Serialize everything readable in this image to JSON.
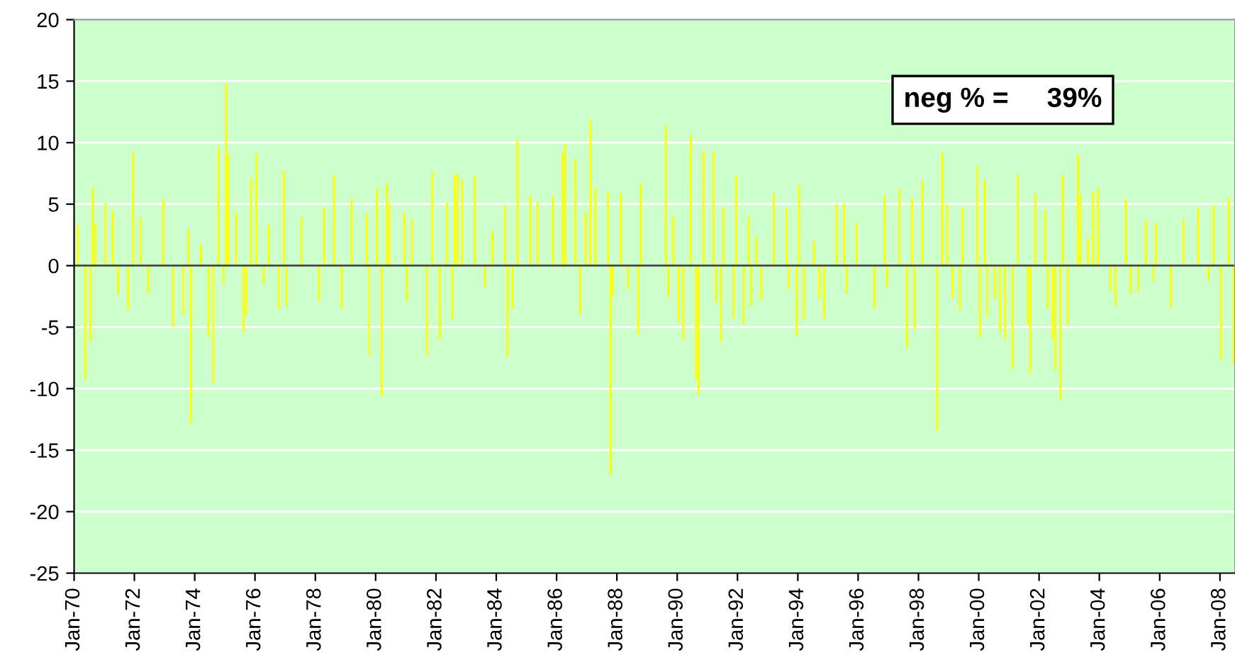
{
  "chart_data": {
    "type": "bar",
    "x": [
      "1970-02",
      "1970-05",
      "1970-07",
      "1970-08",
      "1970-09",
      "1971-01",
      "1971-04",
      "1971-06",
      "1971-10",
      "1971-12",
      "1972-03",
      "1972-06",
      "1972-12",
      "1973-04",
      "1973-08",
      "1973-10",
      "1973-11",
      "1974-03",
      "1974-06",
      "1974-08",
      "1974-10",
      "1974-12",
      "1975-01",
      "1975-02",
      "1975-05",
      "1975-08",
      "1975-09",
      "1975-11",
      "1976-01",
      "1976-04",
      "1976-06",
      "1976-10",
      "1976-12",
      "1977-01",
      "1977-07",
      "1978-02",
      "1978-04",
      "1978-08",
      "1978-11",
      "1979-03",
      "1979-09",
      "1979-10",
      "1980-01",
      "1980-03",
      "1980-05",
      "1980-06",
      "1980-12",
      "1981-01",
      "1981-03",
      "1981-09",
      "1981-11",
      "1982-02",
      "1982-05",
      "1982-07",
      "1982-08",
      "1982-09",
      "1982-11",
      "1983-04",
      "1983-08",
      "1983-11",
      "1984-04",
      "1984-05",
      "1984-07",
      "1984-09",
      "1985-02",
      "1985-05",
      "1985-11",
      "1986-03",
      "1986-04",
      "1986-08",
      "1986-10",
      "1986-12",
      "1987-02",
      "1987-04",
      "1987-09",
      "1987-10",
      "1987-11",
      "1988-02",
      "1988-05",
      "1988-09",
      "1988-10",
      "1989-08",
      "1989-09",
      "1989-11",
      "1990-01",
      "1990-03",
      "1990-06",
      "1990-08",
      "1990-09",
      "1990-11",
      "1991-03",
      "1991-04",
      "1991-06",
      "1991-07",
      "1991-11",
      "1991-12",
      "1992-03",
      "1992-05",
      "1992-06",
      "1992-08",
      "1992-10",
      "1993-03",
      "1993-08",
      "1993-09",
      "1993-12",
      "1994-01",
      "1994-03",
      "1994-07",
      "1994-09",
      "1994-11",
      "1995-04",
      "1995-07",
      "1995-08",
      "1995-12",
      "1996-07",
      "1996-11",
      "1996-12",
      "1997-05",
      "1997-08",
      "1997-10",
      "1997-11",
      "1998-02",
      "1998-08",
      "1998-10",
      "1998-12",
      "1999-02",
      "1999-05",
      "1999-06",
      "1999-12",
      "2000-01",
      "2000-03",
      "2000-04",
      "2000-07",
      "2000-09",
      "2000-11",
      "2001-02",
      "2001-04",
      "2001-08",
      "2001-09",
      "2001-11",
      "2002-03",
      "2002-04",
      "2002-06",
      "2002-07",
      "2002-09",
      "2002-10",
      "2002-12",
      "2003-04",
      "2003-05",
      "2003-08",
      "2003-10",
      "2003-12",
      "2004-05",
      "2004-07",
      "2004-11",
      "2005-01",
      "2005-04",
      "2005-07",
      "2005-10",
      "2005-11",
      "2006-05",
      "2006-10",
      "2007-04",
      "2007-08",
      "2007-10",
      "2008-01",
      "2008-04",
      "2008-06"
    ],
    "values": [
      3.3,
      -9.3,
      -6.2,
      6.4,
      3.5,
      5.1,
      4.5,
      -2.3,
      -3.6,
      9.2,
      3.9,
      -2.3,
      5.4,
      -5.0,
      -4.0,
      3.0,
      -12.8,
      1.7,
      -5.8,
      -9.5,
      9.7,
      -1.5,
      14.8,
      9.0,
      4.3,
      -5.4,
      -4.0,
      7.1,
      9.2,
      -1.5,
      3.3,
      -3.5,
      7.7,
      -3.3,
      3.9,
      -2.9,
      4.7,
      7.4,
      -3.5,
      5.5,
      4.2,
      -7.3,
      6.3,
      -10.6,
      6.7,
      5.1,
      4.3,
      -2.9,
      3.8,
      -7.3,
      7.6,
      -6.0,
      5.1,
      -4.4,
      7.4,
      7.4,
      7.0,
      7.3,
      -1.7,
      2.8,
      4.9,
      -7.4,
      -3.5,
      10.2,
      5.7,
      5.2,
      5.7,
      9.2,
      9.9,
      8.7,
      -4.0,
      4.3,
      11.9,
      6.3,
      6.0,
      -17.0,
      -2.5,
      5.9,
      -1.9,
      -5.6,
      6.7,
      11.4,
      -2.5,
      4.0,
      -4.6,
      -6.0,
      10.6,
      -9.3,
      -10.5,
      9.4,
      9.3,
      -3.0,
      -6.2,
      4.8,
      -4.3,
      7.3,
      -4.8,
      4.0,
      -3.3,
      2.4,
      -2.8,
      5.9,
      4.7,
      -1.9,
      -5.7,
      6.6,
      -4.3,
      2.0,
      -2.7,
      -4.3,
      5.0,
      5.0,
      -2.3,
      3.5,
      -3.5,
      5.7,
      -1.7,
      6.3,
      -6.7,
      5.5,
      -5.2,
      6.9,
      -13.4,
      9.2,
      5.0,
      -2.7,
      -3.6,
      4.8,
      8.1,
      -5.8,
      7.0,
      -4.2,
      -2.7,
      -5.4,
      -6.0,
      -8.4,
      7.4,
      -4.8,
      -8.8,
      5.9,
      4.5,
      -3.5,
      -6.0,
      -8.5,
      -10.9,
      7.4,
      -4.8,
      9.0,
      5.8,
      2.3,
      6.0,
      6.3,
      -2.1,
      -3.3,
      5.4,
      -2.3,
      -2.1,
      3.7,
      -1.3,
      3.5,
      -3.4,
      3.8,
      4.7,
      -1.2,
      4.9,
      -7.7,
      5.5,
      -7.9
    ],
    "color": "#ffff00",
    "xlim": [
      "1970-01",
      "2008-07"
    ],
    "xticks": [
      {
        "value": "1970-01",
        "label": "Jan-70"
      },
      {
        "value": "1972-01",
        "label": "Jan-72"
      },
      {
        "value": "1974-01",
        "label": "Jan-74"
      },
      {
        "value": "1976-01",
        "label": "Jan-76"
      },
      {
        "value": "1978-01",
        "label": "Jan-78"
      },
      {
        "value": "1980-01",
        "label": "Jan-80"
      },
      {
        "value": "1982-01",
        "label": "Jan-82"
      },
      {
        "value": "1984-01",
        "label": "Jan-84"
      },
      {
        "value": "1986-01",
        "label": "Jan-86"
      },
      {
        "value": "1988-01",
        "label": "Jan-88"
      },
      {
        "value": "1990-01",
        "label": "Jan-90"
      },
      {
        "value": "1992-01",
        "label": "Jan-92"
      },
      {
        "value": "1994-01",
        "label": "Jan-94"
      },
      {
        "value": "1996-01",
        "label": "Jan-96"
      },
      {
        "value": "1998-01",
        "label": "Jan-98"
      },
      {
        "value": "2000-01",
        "label": "Jan-00"
      },
      {
        "value": "2002-01",
        "label": "Jan-02"
      },
      {
        "value": "2004-01",
        "label": "Jan-04"
      },
      {
        "value": "2006-01",
        "label": "Jan-06"
      },
      {
        "value": "2008-01",
        "label": "Jan-08"
      }
    ],
    "ylim": [
      -25,
      20
    ],
    "yticks": [
      -25,
      -20,
      -15,
      -10,
      -5,
      0,
      5,
      10,
      15,
      20
    ],
    "grid": "y",
    "annotations": [
      "neg % =     39%"
    ]
  }
}
